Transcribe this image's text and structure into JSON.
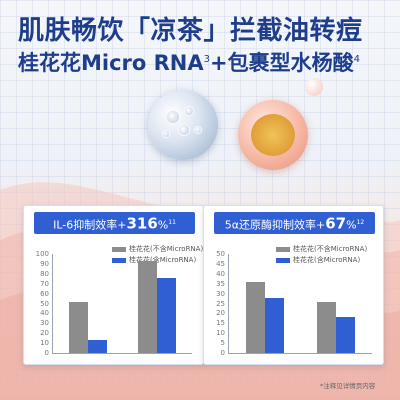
{
  "headline": {
    "line1": "肌肤畅饮「凉茶」拦截油转痘",
    "line2_text": "桂花花Micro RNA",
    "line2_sup1": "3",
    "line2_text2": "+包裹型水杨酸",
    "line2_sup2": "4"
  },
  "panels": [
    {
      "title_prefix": "IL-6抑制效率+",
      "title_value": "316",
      "title_unit": "%",
      "title_sup": "11",
      "legend": [
        "桂花花(不含MicroRNA)",
        "桂花花(含MicroRNA)"
      ],
      "y_ticks": [
        "100",
        "90",
        "80",
        "70",
        "60",
        "50",
        "40",
        "30",
        "20",
        "10",
        "0"
      ],
      "ylim": [
        0,
        100
      ],
      "groups": [
        {
          "gray": 52,
          "blue": 13
        },
        {
          "gray": 93,
          "blue": 76
        }
      ]
    },
    {
      "title_prefix": "5α还原酶抑制效率+",
      "title_value": "67",
      "title_unit": "%",
      "title_sup": "12",
      "legend": [
        "桂花花(不含MicroRNA)",
        "桂花花(含MicroRNA)"
      ],
      "y_ticks": [
        "50",
        "45",
        "40",
        "35",
        "30",
        "25",
        "20",
        "15",
        "10",
        "5",
        "0"
      ],
      "ylim": [
        0,
        50
      ],
      "groups": [
        {
          "gray": 36,
          "blue": 28
        },
        {
          "gray": 26,
          "blue": 18
        }
      ]
    }
  ],
  "colors": {
    "gray_bar": "#8c8c8c",
    "blue_bar": "#2f5fd3",
    "title_blue": "#1e3e8c"
  },
  "footnote": "*注释见详情页内容"
}
